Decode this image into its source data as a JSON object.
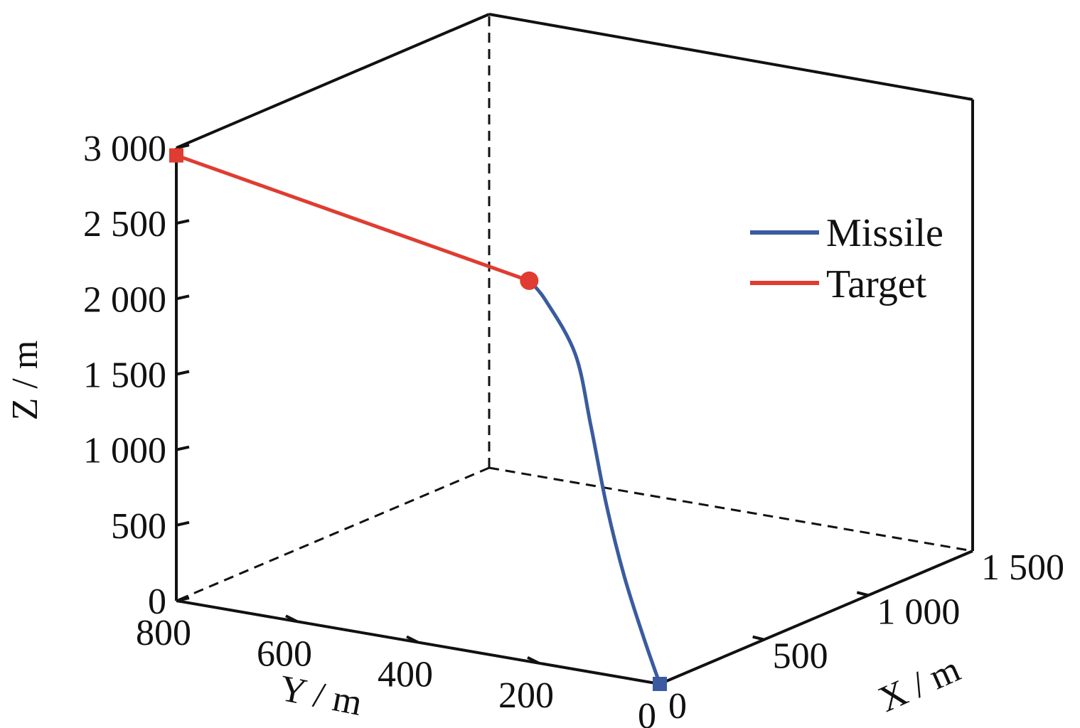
{
  "chart_data": {
    "type": "line",
    "projection": "3d",
    "axes": {
      "x": {
        "label": "X / m",
        "range": [
          0,
          1500
        ],
        "ticks": [
          0,
          500,
          1000,
          1500
        ],
        "tick_labels": [
          "0",
          "500",
          "1 000",
          "1 500"
        ]
      },
      "y": {
        "label": "Y / m",
        "range": [
          0,
          800
        ],
        "ticks": [
          0,
          200,
          400,
          600,
          800
        ],
        "tick_labels": [
          "0",
          "200",
          "400",
          "600",
          "800"
        ]
      },
      "z": {
        "label": "Z / m",
        "range": [
          0,
          3000
        ],
        "ticks": [
          0,
          500,
          1000,
          1500,
          2000,
          2500,
          3000
        ],
        "tick_labels": [
          "0",
          "500",
          "1 000",
          "1 500",
          "2 000",
          "2 500",
          "3 000"
        ]
      }
    },
    "grid": false,
    "box": true,
    "legend": {
      "position": "right",
      "entries": [
        "Missile",
        "Target"
      ]
    },
    "series": [
      {
        "name": "Missile",
        "color": "#3a5ba0",
        "start_marker": "square",
        "points": [
          {
            "x": 0,
            "y": 0,
            "z": 0
          },
          {
            "x": 40,
            "y": 40,
            "z": 250
          },
          {
            "x": 90,
            "y": 90,
            "z": 600
          },
          {
            "x": 150,
            "y": 140,
            "z": 1000
          },
          {
            "x": 220,
            "y": 190,
            "z": 1450
          },
          {
            "x": 290,
            "y": 240,
            "z": 1850
          },
          {
            "x": 320,
            "y": 300,
            "z": 2150
          },
          {
            "x": 330,
            "y": 330,
            "z": 2250
          }
        ]
      },
      {
        "name": "Target",
        "color": "#e03c31",
        "start_marker": "square",
        "end_marker": "circle",
        "points": [
          {
            "x": 0,
            "y": 800,
            "z": 2950
          },
          {
            "x": 330,
            "y": 330,
            "z": 2250
          }
        ]
      }
    ]
  }
}
